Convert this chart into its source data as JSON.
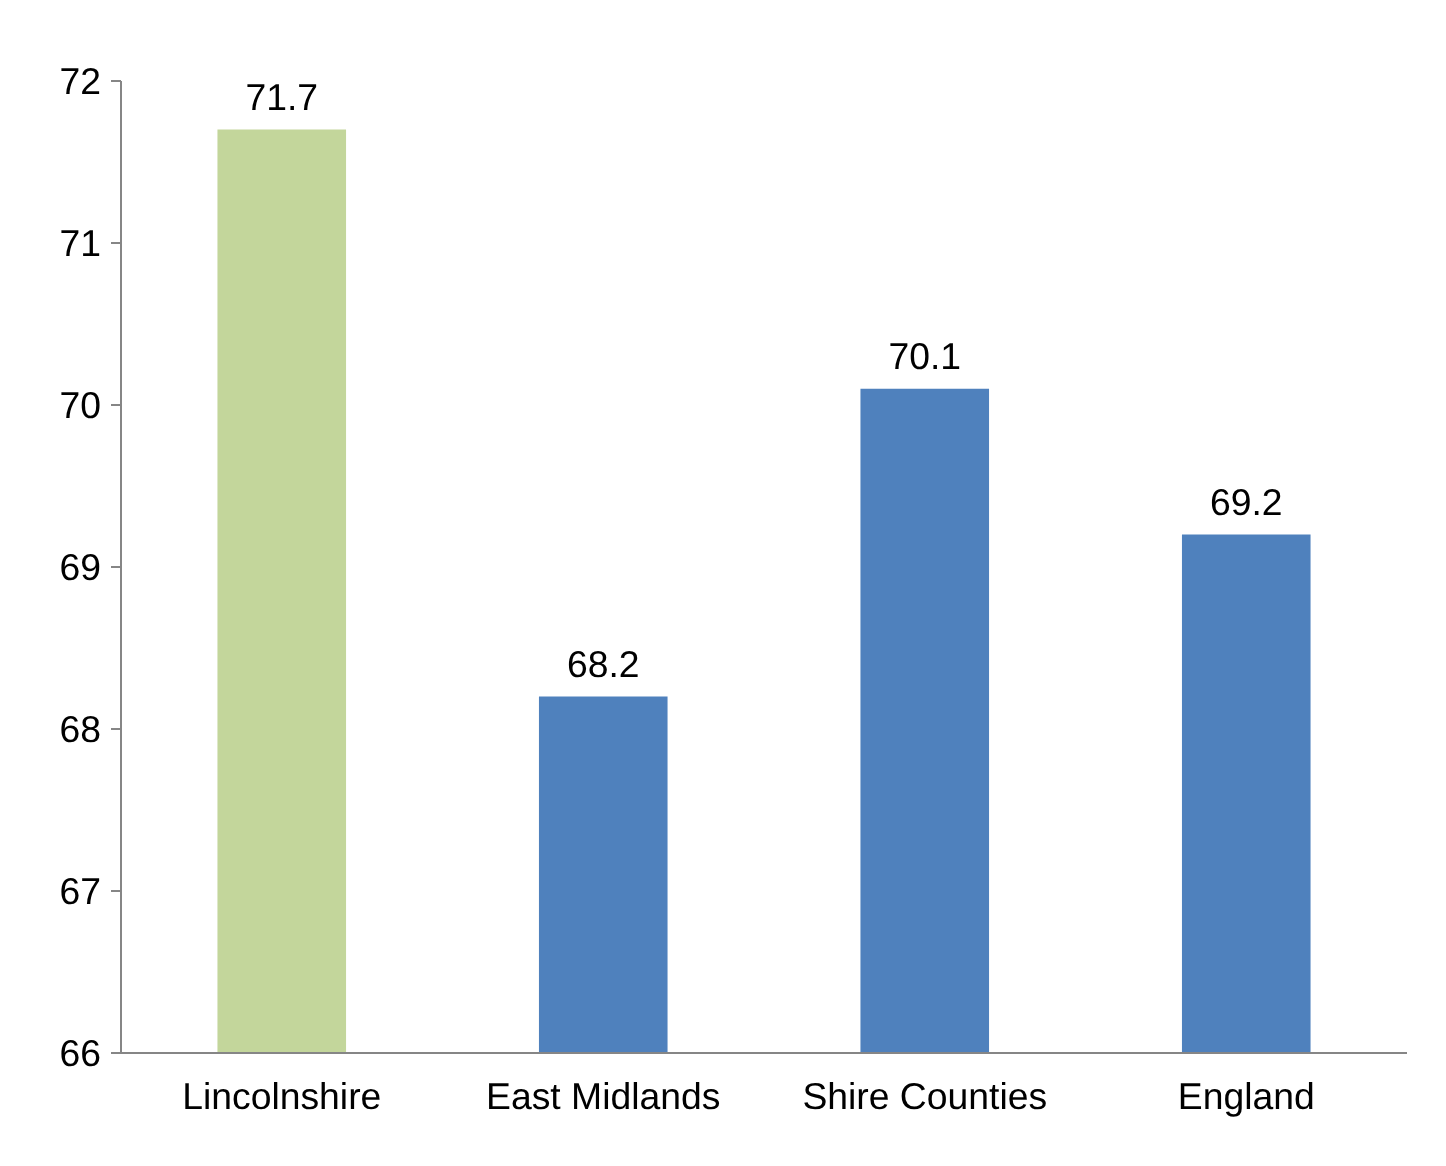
{
  "chart_data": {
    "type": "bar",
    "categories": [
      "Lincolnshire",
      "East Midlands",
      "Shire Counties",
      "England"
    ],
    "values": [
      71.7,
      68.2,
      70.1,
      69.2
    ],
    "colors": [
      "#c3d69b",
      "#4f81bd",
      "#4f81bd",
      "#4f81bd"
    ],
    "ylim": [
      66,
      72
    ],
    "yticks": [
      66,
      67,
      68,
      69,
      70,
      71,
      72
    ],
    "data_labels": true
  }
}
